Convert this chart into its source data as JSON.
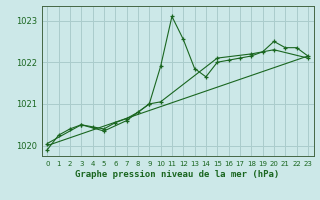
{
  "background_color": "#cce8e8",
  "plot_bg_color": "#cce8e8",
  "grid_color": "#aacccc",
  "line_color": "#1a6620",
  "title": "Graphe pression niveau de la mer (hPa)",
  "ylim": [
    1019.75,
    1023.35
  ],
  "yticks": [
    1020,
    1021,
    1022,
    1023
  ],
  "xlim": [
    -0.5,
    23.5
  ],
  "xticks": [
    0,
    1,
    2,
    3,
    4,
    5,
    6,
    7,
    8,
    9,
    10,
    11,
    12,
    13,
    14,
    15,
    16,
    17,
    18,
    19,
    20,
    21,
    22,
    23
  ],
  "series1_x": [
    0,
    1,
    2,
    3,
    4,
    5,
    6,
    7,
    8,
    9,
    10,
    11,
    12,
    13,
    14,
    15,
    16,
    17,
    18,
    19,
    20,
    21,
    22,
    23
  ],
  "series1_y": [
    1019.9,
    1020.25,
    1020.4,
    1020.5,
    1020.45,
    1020.4,
    1020.55,
    1020.65,
    1020.8,
    1021.0,
    1021.9,
    1023.1,
    1022.55,
    1021.85,
    1021.65,
    1022.0,
    1022.05,
    1022.1,
    1022.15,
    1022.25,
    1022.5,
    1022.35,
    1022.35,
    1022.15
  ],
  "series2_x": [
    0,
    3,
    5,
    7,
    9,
    10,
    15,
    18,
    20,
    23
  ],
  "series2_y": [
    1020.05,
    1020.5,
    1020.35,
    1020.6,
    1021.0,
    1021.05,
    1022.1,
    1022.2,
    1022.3,
    1022.1
  ],
  "series3_x": [
    0,
    23
  ],
  "series3_y": [
    1020.0,
    1022.15
  ],
  "ylabel_fontsize": 6,
  "xlabel_fontsize": 6.5,
  "tick_fontsize": 5.5
}
